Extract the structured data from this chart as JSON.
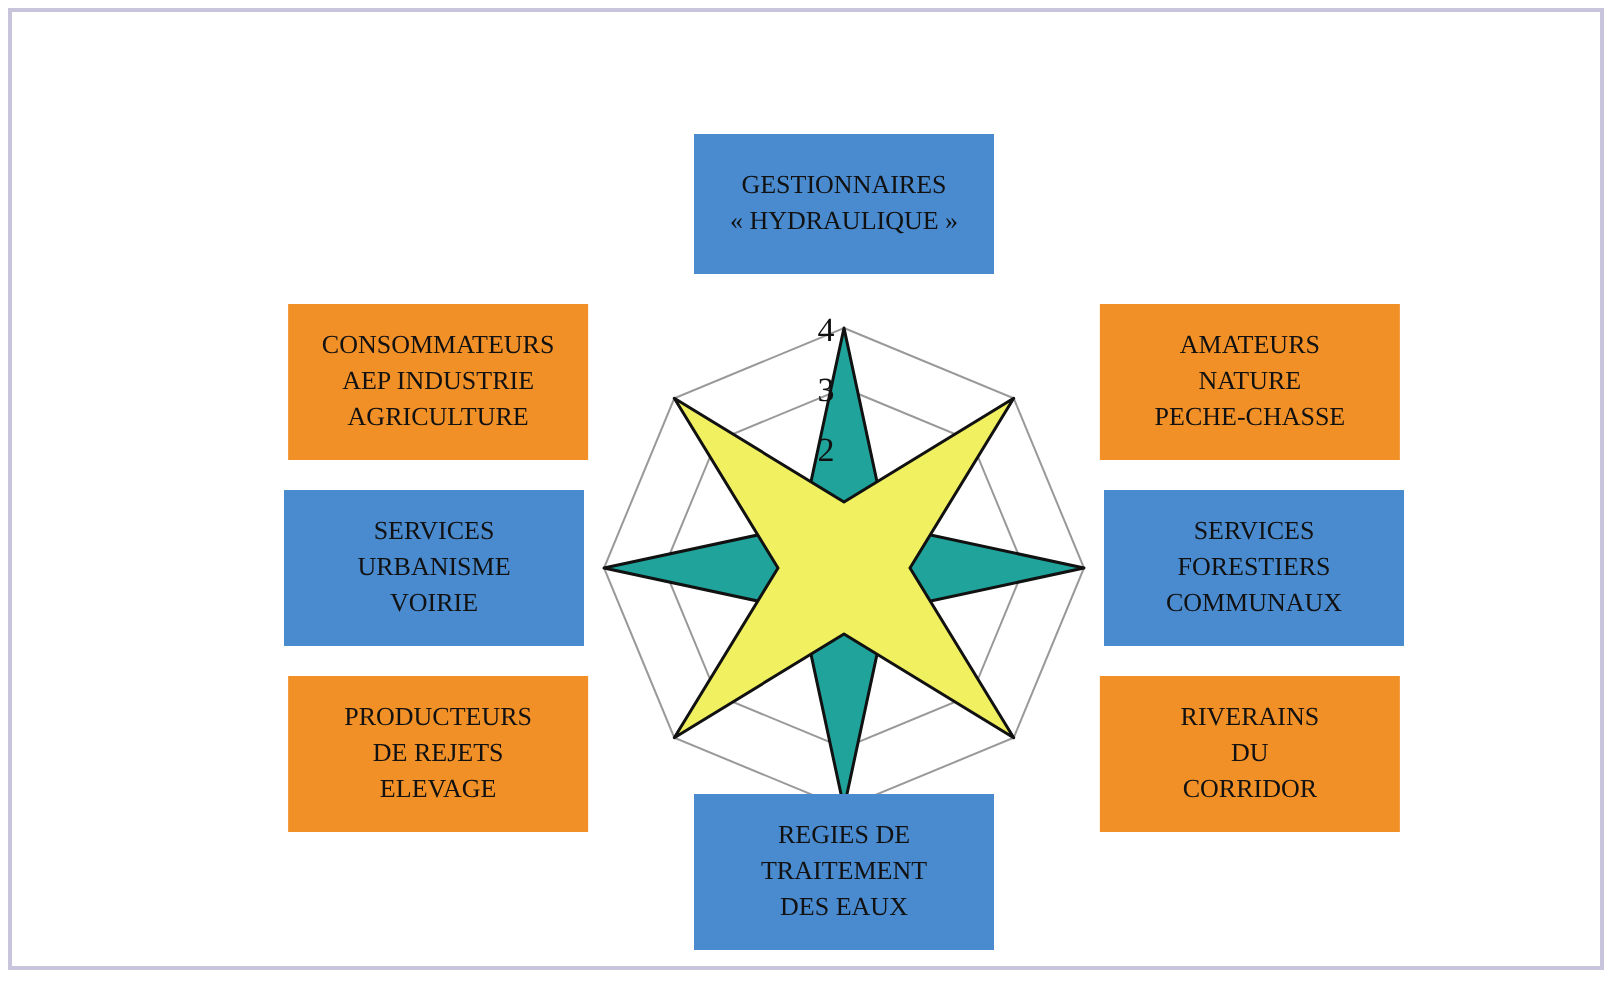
{
  "chart_data": {
    "type": "radar",
    "categories": [
      "GESTIONNAIRES\n« HYDRAULIQUE »",
      "AMATEURS\nNATURE\nPECHE-CHASSE",
      "SERVICES\nFORESTIERS\nCOMMUNAUX",
      "RIVERAINS\nDU\nCORRIDOR",
      "REGIES DE\nTRAITEMENT\nDES EAUX",
      "PRODUCTEURS\nDE REJETS\nELEVAGE",
      "SERVICES\nURBANISME\nVOIRIE",
      "CONSOMMATEURS\nAEP INDUSTRIE\nAGRICULTURE"
    ],
    "series": [
      {
        "color": "#f0f060",
        "values": [
          1.1,
          4,
          1.1,
          4,
          1.1,
          4,
          1.1,
          4
        ]
      },
      {
        "color": "#1fa39a",
        "values": [
          4,
          1,
          4,
          1,
          4,
          1,
          4,
          1
        ]
      }
    ],
    "ylim": [
      0,
      4
    ],
    "yticks": [
      2,
      3,
      4
    ],
    "grid": true,
    "legend": false,
    "marker": "none"
  }
}
